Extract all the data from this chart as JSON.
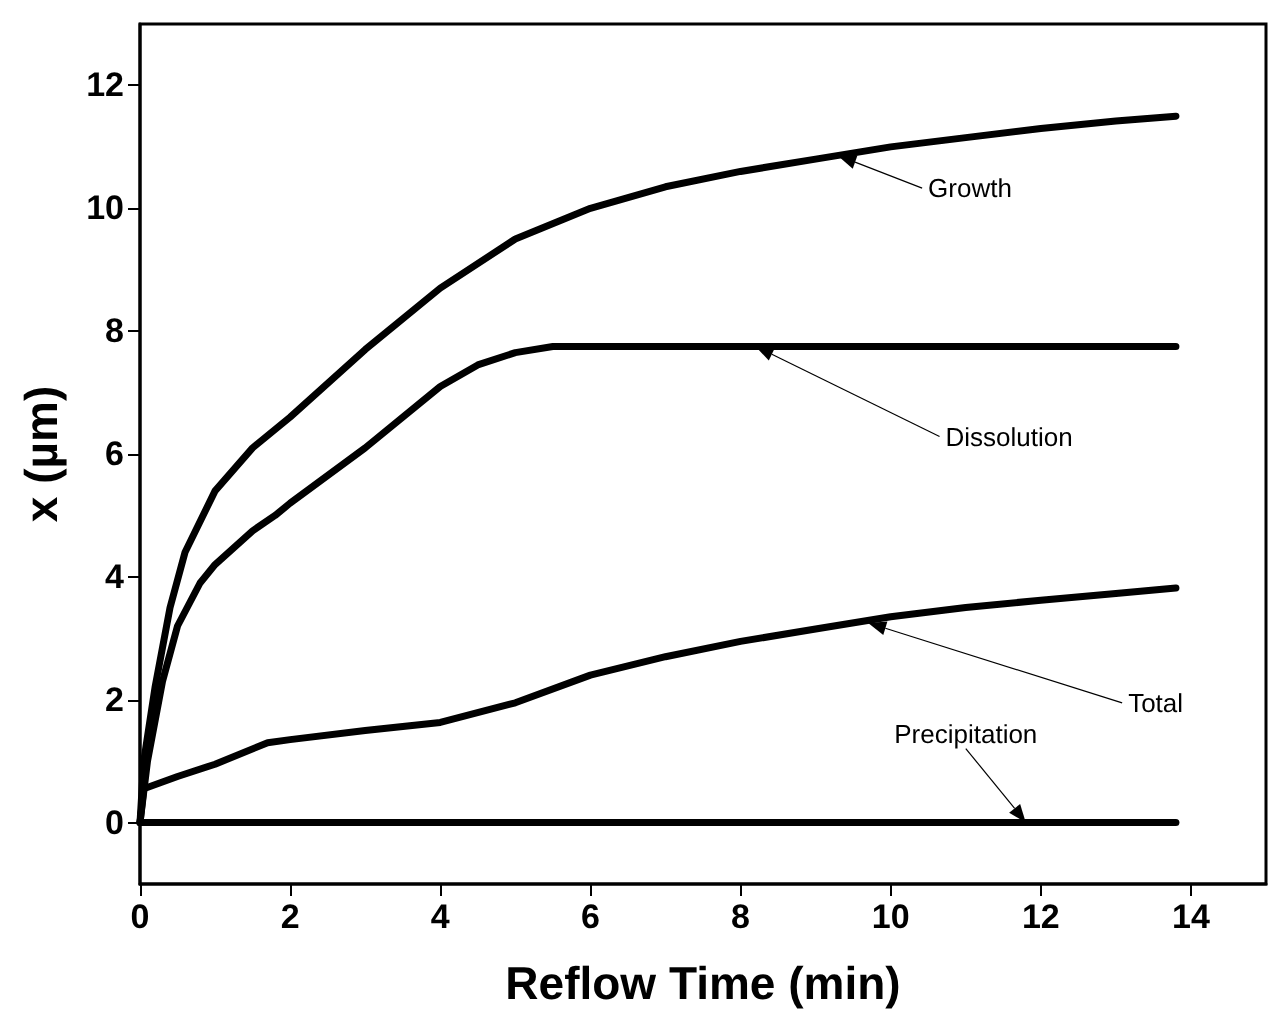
{
  "chart_data": {
    "type": "line",
    "xlabel": "Reflow Time (min)",
    "ylabel": "x (µm)",
    "xlim": [
      0,
      15
    ],
    "xticks": [
      0,
      2,
      4,
      6,
      8,
      10,
      12,
      14
    ],
    "ylim": [
      -1,
      13
    ],
    "yticks": [
      0,
      2,
      4,
      6,
      8,
      10,
      12
    ],
    "grid": false,
    "line_style": "solid",
    "series": [
      {
        "color": "#000000",
        "x": [
          0,
          0.05,
          0.2,
          0.4,
          0.6,
          1,
          1.5,
          2,
          3,
          4,
          5,
          6,
          7,
          8,
          9,
          10,
          11,
          12,
          13,
          13.8
        ],
        "values": [
          0,
          1,
          2.2,
          3.5,
          4.4,
          5.4,
          6.1,
          6.6,
          7.7,
          8.7,
          9.5,
          10,
          10.35,
          10.6,
          10.8,
          11,
          11.15,
          11.3,
          11.42,
          11.5
        ]
      },
      {
        "color": "#000000",
        "x": [
          0,
          0.1,
          0.3,
          0.5,
          0.8,
          1,
          1.5,
          1.8,
          2,
          3,
          4,
          4.5,
          5,
          5.5,
          6,
          13.8
        ],
        "values": [
          0,
          1,
          2.3,
          3.2,
          3.9,
          4.2,
          4.75,
          5,
          5.2,
          6.1,
          7.1,
          7.45,
          7.65,
          7.75,
          7.75,
          7.75
        ]
      },
      {
        "color": "#000000",
        "x": [
          0,
          0.05,
          0.5,
          1,
          1.7,
          2,
          3,
          4,
          5,
          6,
          7,
          8,
          9,
          10,
          11,
          12,
          13,
          13.8
        ],
        "values": [
          0,
          0.55,
          0.75,
          0.95,
          1.3,
          1.35,
          1.5,
          1.63,
          1.95,
          2.4,
          2.7,
          2.95,
          3.15,
          3.35,
          3.5,
          3.62,
          3.73,
          3.82
        ]
      },
      {
        "color": "#000000",
        "x": [
          0,
          13.8
        ],
        "values": [
          0,
          0
        ]
      }
    ],
    "annotations": [
      {
        "text": "Growth",
        "x": 9.3,
        "y": 10.85
      },
      {
        "text": "Dissolution",
        "x": 8.2,
        "y": 7.75
      },
      {
        "text": "Total",
        "x": 9.7,
        "y": 3.25
      },
      {
        "text": "Precipitation",
        "x": 11.8,
        "y": 0
      }
    ]
  }
}
